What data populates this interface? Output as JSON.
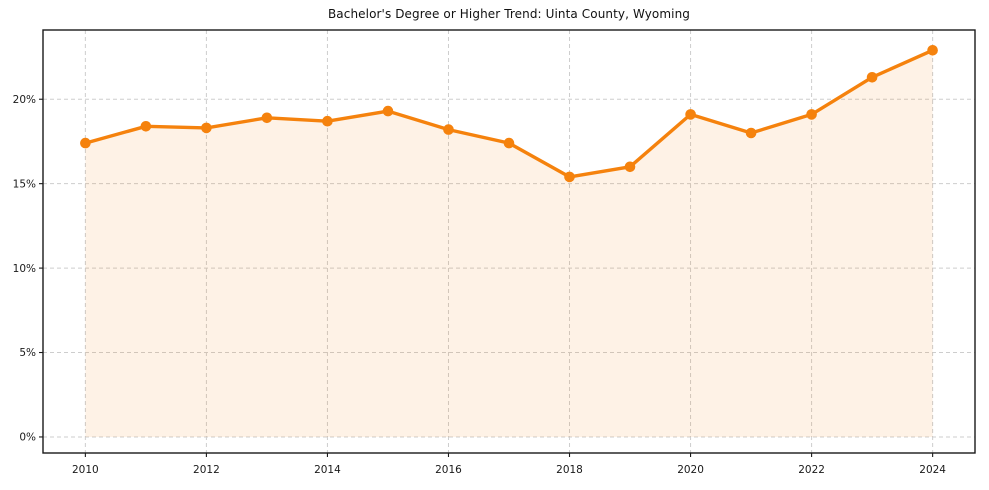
{
  "chart_data": {
    "type": "area",
    "title": "Bachelor's Degree or Higher Trend: Uinta County, Wyoming",
    "x": [
      2010,
      2011,
      2012,
      2013,
      2014,
      2015,
      2016,
      2017,
      2018,
      2019,
      2020,
      2021,
      2022,
      2023,
      2024
    ],
    "values": [
      17.4,
      18.4,
      18.3,
      18.9,
      18.7,
      19.3,
      18.2,
      17.4,
      15.4,
      16.0,
      19.1,
      18.0,
      19.1,
      21.3,
      22.9
    ],
    "xlabel": "",
    "ylabel": "",
    "xlim": [
      2009.3,
      2024.7
    ],
    "ylim": [
      -0.95,
      24.1
    ],
    "xtick_values": [
      2010,
      2012,
      2014,
      2016,
      2018,
      2020,
      2022,
      2024
    ],
    "xtick_labels": [
      "2010",
      "2012",
      "2014",
      "2016",
      "2018",
      "2020",
      "2022",
      "2024"
    ],
    "ytick_values": [
      0,
      5,
      10,
      15,
      20
    ],
    "ytick_labels": [
      "0%",
      "5%",
      "10%",
      "15%",
      "20%"
    ],
    "grid": {
      "visible": true,
      "style": "dashed",
      "color": "#cdcdcd",
      "axes": "both"
    },
    "legend": {
      "visible": false
    },
    "line_color": "#f5820d",
    "fill_color": "rgba(245,130,13,0.10)",
    "marker": "circle",
    "marker_color": "#f5820d",
    "spine_color": "#1a1a1a",
    "tick_label_color": "#1a1a1a",
    "title_color": "#111111",
    "background_color": "#ffffff"
  }
}
